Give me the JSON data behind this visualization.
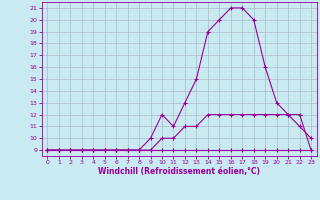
{
  "xlabel": "Windchill (Refroidissement éolien,°C)",
  "xlim": [
    -0.5,
    23.5
  ],
  "ylim": [
    8.5,
    21.5
  ],
  "xticks": [
    0,
    1,
    2,
    3,
    4,
    5,
    6,
    7,
    8,
    9,
    10,
    11,
    12,
    13,
    14,
    15,
    16,
    17,
    18,
    19,
    20,
    21,
    22,
    23
  ],
  "yticks": [
    9,
    10,
    11,
    12,
    13,
    14,
    15,
    16,
    17,
    18,
    19,
    20,
    21
  ],
  "bg_color": "#c8eaf0",
  "grid_color": "#aab8cc",
  "line_color": "#990099",
  "line1_x": [
    0,
    1,
    2,
    3,
    4,
    5,
    6,
    7,
    8,
    9,
    10,
    11,
    12,
    13,
    14,
    15,
    16,
    17,
    18,
    19,
    20,
    21,
    22,
    23
  ],
  "line1_y": [
    9,
    9,
    9,
    9,
    9,
    9,
    9,
    9,
    9,
    9,
    9,
    9,
    9,
    9,
    9,
    9,
    9,
    9,
    9,
    9,
    9,
    9,
    9,
    9
  ],
  "line2_x": [
    0,
    1,
    2,
    3,
    4,
    5,
    6,
    7,
    8,
    9,
    10,
    11,
    12,
    13,
    14,
    15,
    16,
    17,
    18,
    19,
    20,
    21,
    22,
    23
  ],
  "line2_y": [
    9,
    9,
    9,
    9,
    9,
    9,
    9,
    9,
    9,
    9,
    10,
    10,
    11,
    11,
    12,
    12,
    12,
    12,
    12,
    12,
    12,
    12,
    12,
    9
  ],
  "line3_x": [
    0,
    1,
    2,
    3,
    4,
    5,
    6,
    7,
    8,
    9,
    10,
    11,
    12,
    13,
    14,
    15,
    16,
    17,
    18,
    19,
    20,
    21,
    22,
    23
  ],
  "line3_y": [
    9,
    9,
    9,
    9,
    9,
    9,
    9,
    9,
    9,
    10,
    12,
    11,
    13,
    15,
    19,
    20,
    21,
    21,
    20,
    16,
    13,
    12,
    11,
    10
  ]
}
